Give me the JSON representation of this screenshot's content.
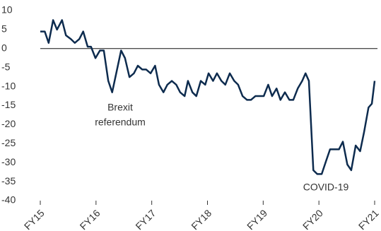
{
  "chart_data": {
    "type": "line",
    "x": [
      2015.0,
      2015.08,
      2015.15,
      2015.23,
      2015.3,
      2015.39,
      2015.46,
      2015.55,
      2015.62,
      2015.7,
      2015.77,
      2015.85,
      2015.91,
      2015.99,
      2016.07,
      2016.14,
      2016.22,
      2016.29,
      2016.37,
      2016.45,
      2016.52,
      2016.6,
      2016.68,
      2016.75,
      2016.83,
      2016.9,
      2016.98,
      2017.06,
      2017.13,
      2017.21,
      2017.28,
      2017.36,
      2017.44,
      2017.51,
      2017.59,
      2017.65,
      2017.73,
      2017.8,
      2017.88,
      2017.96,
      2018.02,
      2018.1,
      2018.17,
      2018.25,
      2018.32,
      2018.4,
      2018.48,
      2018.55,
      2018.63,
      2018.71,
      2018.78,
      2018.86,
      2018.93,
      2019.01,
      2019.09,
      2019.16,
      2019.24,
      2019.31,
      2019.39,
      2019.47,
      2019.54,
      2019.62,
      2019.7,
      2019.76,
      2019.82,
      2019.9,
      2019.97,
      2020.05,
      2020.13,
      2020.2,
      2020.28,
      2020.36,
      2020.43,
      2020.51,
      2020.58,
      2020.66,
      2020.74,
      2020.81,
      2020.89,
      2020.95,
      2021.0
    ],
    "series": [
      {
        "color": "#0d2b4e",
        "values": [
          4.5,
          4.5,
          1.5,
          7.5,
          5,
          7.5,
          3.5,
          2.5,
          1.5,
          2.5,
          4.5,
          0.5,
          0.5,
          -2.5,
          -0.5,
          -0.5,
          -8.5,
          -11.5,
          -6,
          -0.5,
          -2.5,
          -7.5,
          -6.5,
          -4.5,
          -5.5,
          -5.5,
          -6.5,
          -4.5,
          -9.5,
          -11.5,
          -9.5,
          -8.5,
          -9.5,
          -11.5,
          -12.5,
          -8.5,
          -11.5,
          -12.5,
          -8.5,
          -9.5,
          -6.5,
          -8.5,
          -6.5,
          -8.5,
          -9.5,
          -6.5,
          -8.5,
          -9.5,
          -12.5,
          -13.5,
          -13.5,
          -12.5,
          -12.5,
          -12.5,
          -9.5,
          -12.5,
          -10.5,
          -13.5,
          -11.5,
          -13.5,
          -13.5,
          -10.5,
          -8.5,
          -6.5,
          -8.5,
          -32,
          -33,
          -33,
          -29.5,
          -26.5,
          -26.5,
          -26.5,
          -24.5,
          -30.5,
          -32,
          -25.5,
          -27,
          -22,
          -15.5,
          -14.5,
          -8.5
        ]
      }
    ],
    "xlim": [
      2015,
      2021
    ],
    "xticks": [
      {
        "value": 2015,
        "label": "FY15"
      },
      {
        "value": 2016,
        "label": "FY16"
      },
      {
        "value": 2017,
        "label": "FY17"
      },
      {
        "value": 2018,
        "label": "FY18"
      },
      {
        "value": 2019,
        "label": "FY19"
      },
      {
        "value": 2020,
        "label": "FY20"
      },
      {
        "value": 2021,
        "label": "FY21"
      }
    ],
    "ylim": [
      -40,
      10
    ],
    "yticks": [
      -40,
      -35,
      -30,
      -25,
      -20,
      -15,
      -10,
      -5,
      0,
      5,
      10
    ],
    "annotations": [
      [
        "Brexit",
        "referendum"
      ],
      [
        "COVID-19"
      ]
    ]
  }
}
